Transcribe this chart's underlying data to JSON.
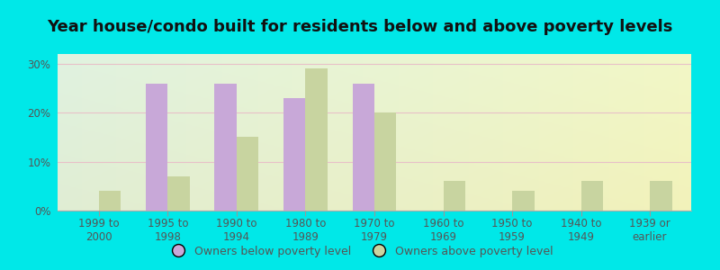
{
  "title": "Year house/condo built for residents below and above poverty levels",
  "categories": [
    "1999 to\n2000",
    "1995 to\n1998",
    "1990 to\n1994",
    "1980 to\n1989",
    "1970 to\n1979",
    "1960 to\n1969",
    "1950 to\n1959",
    "1940 to\n1949",
    "1939 or\nearlier"
  ],
  "below_poverty": [
    0,
    26,
    26,
    23,
    26,
    0,
    0,
    0,
    0
  ],
  "above_poverty": [
    4,
    7,
    15,
    29,
    20,
    6,
    4,
    6,
    6
  ],
  "below_color": "#c8a8d8",
  "above_color": "#c8d4a0",
  "background_color": "#00e8e8",
  "ylim": [
    0,
    32
  ],
  "yticks": [
    0,
    10,
    20,
    30
  ],
  "ytick_labels": [
    "0%",
    "10%",
    "20%",
    "30%"
  ],
  "legend_below": "Owners below poverty level",
  "legend_above": "Owners above poverty level",
  "title_fontsize": 13,
  "tick_fontsize": 8.5,
  "legend_fontsize": 9,
  "grid_color": "#e8c0c8",
  "text_color": "#555555"
}
